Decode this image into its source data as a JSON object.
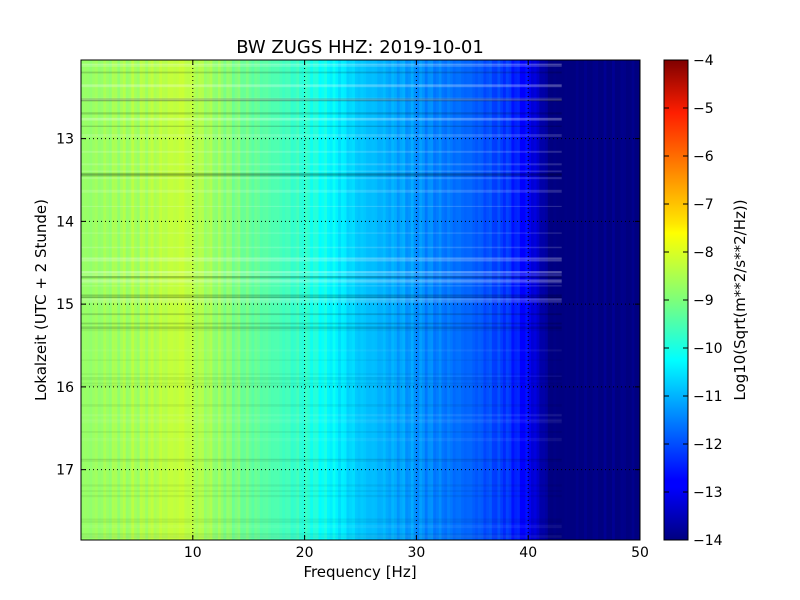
{
  "chart_data": {
    "type": "heatmap",
    "title": "BW ZUGS HHZ: 2019-10-01",
    "xlabel": "Frequency [Hz]",
    "ylabel": "Lokalzeit (UTC + 2 Stunde)",
    "xlim": [
      0,
      50
    ],
    "ylim": [
      12.05,
      17.85
    ],
    "y_inverted": true,
    "xticks": [
      10,
      20,
      30,
      40,
      50
    ],
    "yticks": [
      13,
      14,
      15,
      16,
      17
    ],
    "grid": true,
    "colorbar": {
      "label": "Log10(Sqrt(m**2/s**2/Hz))",
      "range": [
        -14,
        -4
      ],
      "ticks": [
        -4,
        -5,
        -6,
        -7,
        -8,
        -9,
        -10,
        -11,
        -12,
        -13,
        -14
      ],
      "colormap": "jet"
    },
    "approx_profile": {
      "frequency_hz": [
        0,
        5,
        9,
        15,
        20,
        25,
        30,
        35,
        38,
        40,
        41,
        42,
        45,
        50
      ],
      "log10_amplitude": [
        -8.8,
        -8.6,
        -8.3,
        -9.2,
        -9.8,
        -10.8,
        -11.3,
        -11.8,
        -12.2,
        -12.8,
        -13.4,
        -14,
        -14,
        -14
      ]
    }
  }
}
